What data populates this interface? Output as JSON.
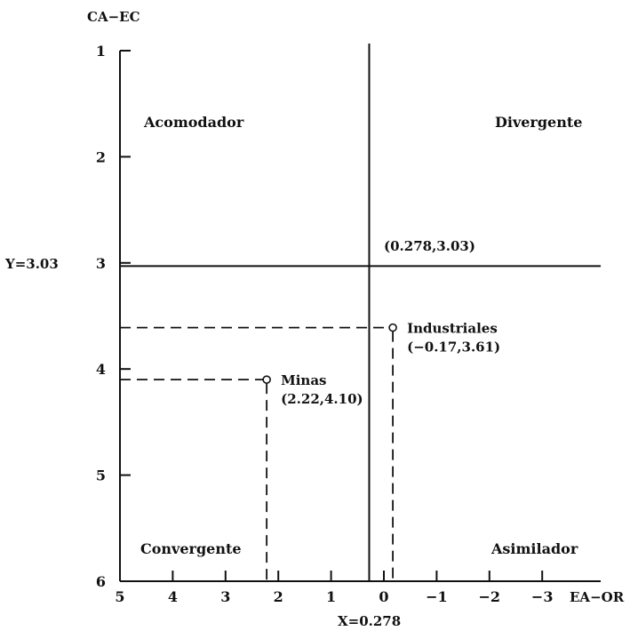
{
  "chart_data": {
    "type": "scatter",
    "y_axis_label": "CA−EC",
    "x_axis_label": "EA−OR",
    "y_ticks": [
      1,
      2,
      3,
      4,
      5,
      6
    ],
    "x_ticks": [
      {
        "value": 5,
        "label": "5"
      },
      {
        "value": 4,
        "label": "4"
      },
      {
        "value": 3,
        "label": "3"
      },
      {
        "value": 2,
        "label": "2"
      },
      {
        "value": 1,
        "label": "1"
      },
      {
        "value": 0,
        "label": "0"
      },
      {
        "value": -1,
        "label": "−1"
      },
      {
        "value": -2,
        "label": "−2"
      },
      {
        "value": -3,
        "label": "−3"
      }
    ],
    "xlim": [
      5,
      -3.7
    ],
    "ylim": [
      1,
      6
    ],
    "y_reversed": true,
    "x_reversed": true,
    "reference_x": {
      "value": 0.278,
      "label": "X=0.278"
    },
    "reference_y": {
      "value": 3.03,
      "label": "Y=3.03"
    },
    "origin_label": "(0.278,3.03)",
    "quadrants": {
      "top_left": "Acomodador",
      "top_right": "Divergente",
      "bottom_left": "Convergente",
      "bottom_right": "Asimilador"
    },
    "points": [
      {
        "name": "Minas",
        "coord_label": "(2.22,4.10)",
        "x": 2.22,
        "y": 4.1
      },
      {
        "name": "Industriales",
        "coord_label": "(−0.17,3.61)",
        "x": -0.17,
        "y": 3.61
      }
    ]
  }
}
